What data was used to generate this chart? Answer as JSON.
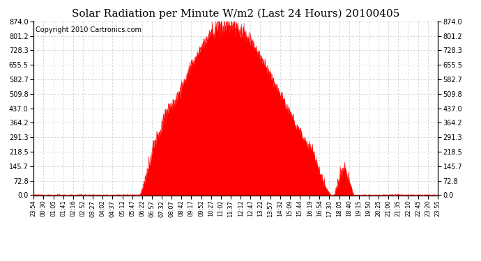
{
  "title": "Solar Radiation per Minute W/m2 (Last 24 Hours) 20100405",
  "copyright": "Copyright 2010 Cartronics.com",
  "y_ticks": [
    0.0,
    72.8,
    145.7,
    218.5,
    291.3,
    364.2,
    437.0,
    509.8,
    582.7,
    655.5,
    728.3,
    801.2,
    874.0
  ],
  "ymax": 874.0,
  "ymin": 0.0,
  "x_labels": [
    "23:54",
    "00:30",
    "01:05",
    "01:41",
    "02:16",
    "02:52",
    "03:27",
    "04:02",
    "04:37",
    "05:12",
    "05:47",
    "06:22",
    "06:57",
    "07:32",
    "08:07",
    "08:42",
    "09:17",
    "09:52",
    "10:27",
    "11:02",
    "11:37",
    "12:12",
    "12:47",
    "13:22",
    "13:57",
    "14:32",
    "15:09",
    "15:44",
    "16:19",
    "16:54",
    "17:30",
    "18:05",
    "18:40",
    "19:15",
    "19:50",
    "20:25",
    "21:00",
    "21:35",
    "22:10",
    "22:45",
    "23:20",
    "23:55"
  ],
  "fill_color": "#ff0000",
  "line_color": "#ff0000",
  "bg_color": "#ffffff",
  "grid_color": "#c8c8c8",
  "dashed_line_color": "#ff0000",
  "title_fontsize": 11,
  "copyright_fontsize": 7
}
